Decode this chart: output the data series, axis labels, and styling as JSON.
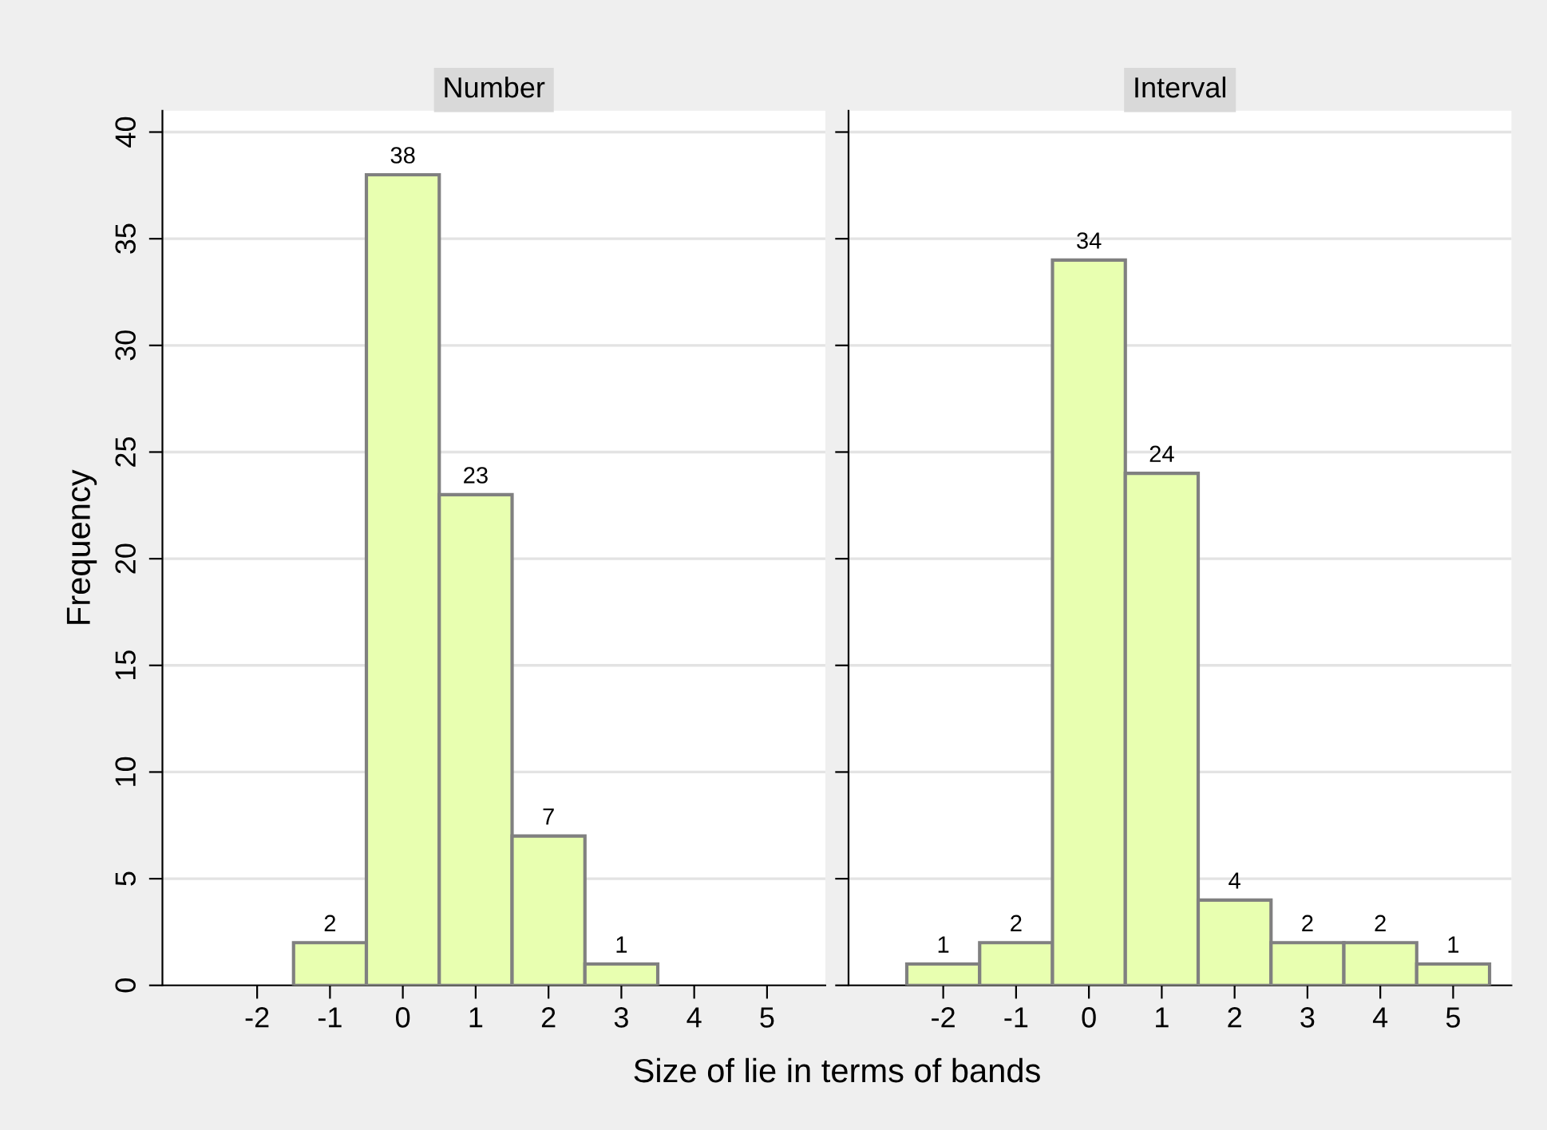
{
  "chart_data": [
    {
      "type": "histogram",
      "title": "Number",
      "xlabel": "Size of lie in terms of bands",
      "ylabel": "Frequency",
      "bins": [
        -1.5,
        -0.5,
        0.5,
        1.5,
        2.5,
        3.5
      ],
      "values": [
        2,
        38,
        23,
        7,
        1
      ],
      "color": "#e8ffb0",
      "xlim": [
        -3.3,
        5.8
      ],
      "xticks": [
        -2,
        -1,
        0,
        1,
        2,
        3,
        4,
        5
      ],
      "ylim": [
        0,
        41
      ],
      "yticks": [
        0,
        5,
        10,
        15,
        20,
        25,
        30,
        35,
        40
      ],
      "grid": "y",
      "data_labels": true
    },
    {
      "type": "histogram",
      "title": "Interval",
      "bins": [
        -2.5,
        -1.5,
        -0.5,
        0.5,
        1.5,
        2.5,
        3.5,
        4.5,
        5.5
      ],
      "values": [
        1,
        2,
        34,
        24,
        4,
        2,
        2,
        1
      ],
      "color": "#e8ffb0",
      "xlim": [
        -3.3,
        5.8
      ],
      "xticks": [
        -2,
        -1,
        0,
        1,
        2,
        3,
        4,
        5
      ],
      "ylim": [
        0,
        41
      ],
      "yticks": [
        0,
        5,
        10,
        15,
        20,
        25,
        30,
        35,
        40
      ],
      "grid": "y",
      "data_labels": true,
      "tick_labels": "x"
    }
  ]
}
